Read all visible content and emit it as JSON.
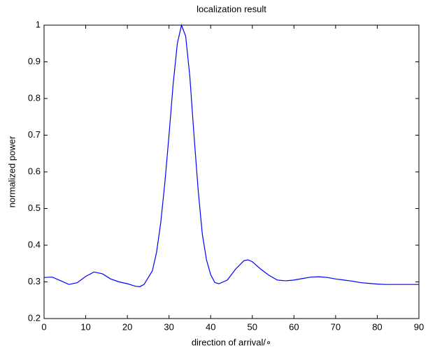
{
  "chart_data": {
    "type": "line",
    "title": "localization result",
    "xlabel": "direction of arrival/∘",
    "ylabel": "normalized power",
    "x": [
      0,
      2,
      4,
      6,
      8,
      10,
      12,
      14,
      16,
      18,
      20,
      22,
      23,
      24,
      26,
      27,
      28,
      29,
      30,
      31,
      32,
      33,
      34,
      35,
      36,
      37,
      38,
      39,
      40,
      41,
      42,
      44,
      46,
      48,
      49,
      50,
      52,
      54,
      56,
      58,
      60,
      62,
      64,
      66,
      68,
      70,
      72,
      74,
      76,
      78,
      80,
      82,
      84,
      86,
      88,
      90
    ],
    "series": [
      {
        "color": "#0000ff",
        "values": [
          0.312,
          0.313,
          0.303,
          0.293,
          0.298,
          0.315,
          0.327,
          0.322,
          0.308,
          0.3,
          0.295,
          0.288,
          0.287,
          0.293,
          0.33,
          0.38,
          0.46,
          0.57,
          0.7,
          0.84,
          0.95,
          1.0,
          0.97,
          0.86,
          0.7,
          0.55,
          0.43,
          0.36,
          0.32,
          0.298,
          0.295,
          0.305,
          0.335,
          0.358,
          0.36,
          0.355,
          0.335,
          0.318,
          0.305,
          0.303,
          0.305,
          0.309,
          0.313,
          0.314,
          0.312,
          0.308,
          0.305,
          0.302,
          0.298,
          0.296,
          0.294,
          0.293,
          0.293,
          0.293,
          0.293,
          0.293
        ]
      }
    ],
    "xlim": [
      0,
      90
    ],
    "xticks": [
      0,
      10,
      20,
      30,
      40,
      50,
      60,
      70,
      80,
      90
    ],
    "ylim": [
      0.2,
      1
    ],
    "yticks": [
      0.2,
      0.3,
      0.4,
      0.5,
      0.6,
      0.7,
      0.8,
      0.9,
      1
    ],
    "grid": false
  }
}
